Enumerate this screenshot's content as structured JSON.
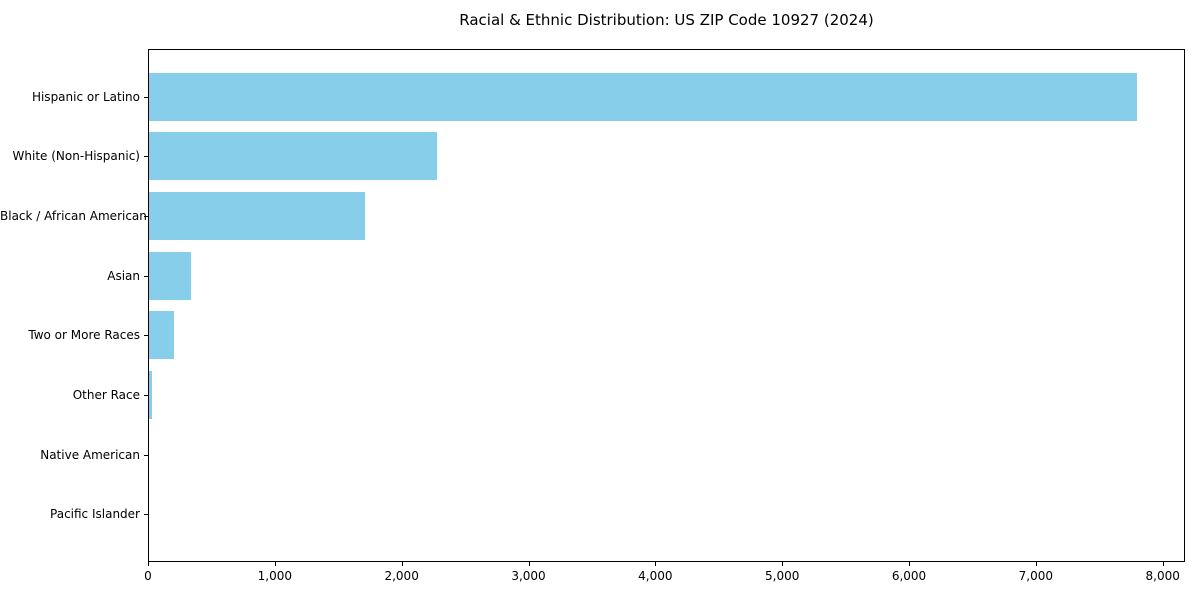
{
  "chart_data": {
    "type": "bar",
    "orientation": "horizontal",
    "title": "Racial & Ethnic Distribution: US ZIP Code 10927 (2024)",
    "categories": [
      "Hispanic or Latino",
      "White (Non-Hispanic)",
      "Black / African American",
      "Asian",
      "Two or More Races",
      "Other Race",
      "Native American",
      "Pacific Islander"
    ],
    "values": [
      7790,
      2270,
      1700,
      330,
      200,
      25,
      0,
      0
    ],
    "xlabel": "",
    "ylabel": "",
    "xlim": [
      0,
      8176
    ],
    "xticks": [
      0,
      1000,
      2000,
      3000,
      4000,
      5000,
      6000,
      7000,
      8000
    ],
    "xtick_labels": [
      "0",
      "1,000",
      "2,000",
      "3,000",
      "4,000",
      "5,000",
      "6,000",
      "7,000",
      "8,000"
    ],
    "bar_color": "#87CEEB",
    "axis_color": "#000000",
    "grid": false,
    "legend": null
  }
}
